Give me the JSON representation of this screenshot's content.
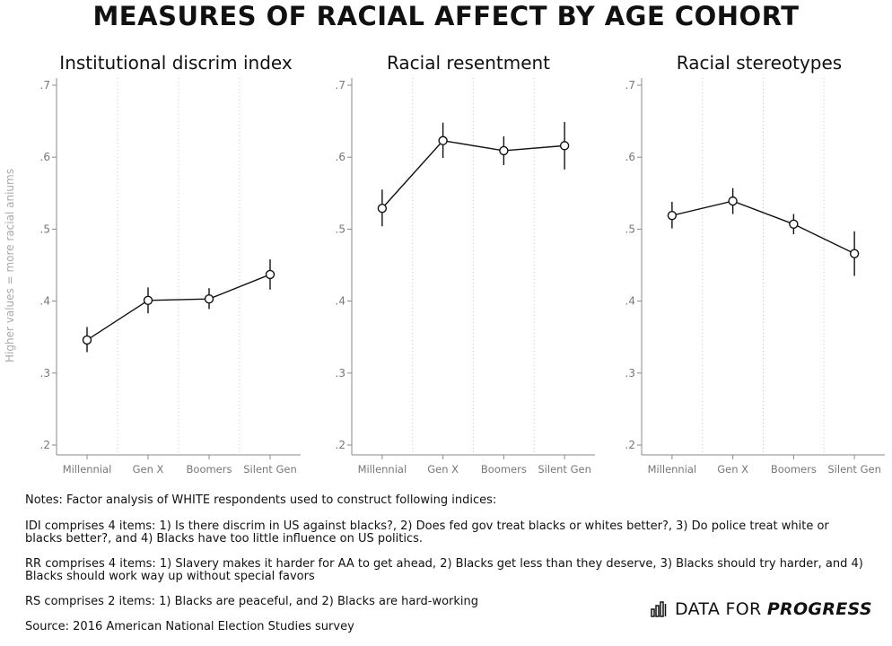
{
  "title": "MEASURES OF RACIAL AFFECT BY AGE COHORT",
  "y_axis_label": "Higher values = more racial aniums",
  "chart_data": [
    {
      "type": "line",
      "title": "Institutional discrim index",
      "categories": [
        "Millennial",
        "Gen X",
        "Boomers",
        "Silent Gen"
      ],
      "values": [
        0.346,
        0.401,
        0.403,
        0.437
      ],
      "ci_low": [
        0.329,
        0.383,
        0.389,
        0.416
      ],
      "ci_high": [
        0.364,
        0.419,
        0.418,
        0.458
      ],
      "ylim": [
        0.2,
        0.7
      ],
      "yticks": [
        ".2",
        ".3",
        ".4",
        ".5",
        ".6",
        ".7"
      ],
      "grid": "vertical dotted"
    },
    {
      "type": "line",
      "title": "Racial resentment",
      "categories": [
        "Millennial",
        "Gen X",
        "Boomers",
        "Silent Gen"
      ],
      "values": [
        0.529,
        0.623,
        0.609,
        0.616
      ],
      "ci_low": [
        0.504,
        0.599,
        0.589,
        0.583
      ],
      "ci_high": [
        0.555,
        0.648,
        0.629,
        0.649
      ],
      "ylim": [
        0.2,
        0.7
      ],
      "yticks": [
        ".2",
        ".3",
        ".4",
        ".5",
        ".6",
        ".7"
      ],
      "grid": "vertical dotted"
    },
    {
      "type": "line",
      "title": "Racial stereotypes",
      "categories": [
        "Millennial",
        "Gen X",
        "Boomers",
        "Silent Gen"
      ],
      "values": [
        0.519,
        0.539,
        0.507,
        0.466
      ],
      "ci_low": [
        0.501,
        0.521,
        0.493,
        0.435
      ],
      "ci_high": [
        0.538,
        0.557,
        0.521,
        0.497
      ],
      "ylim": [
        0.2,
        0.7
      ],
      "yticks": [
        ".2",
        ".3",
        ".4",
        ".5",
        ".6",
        ".7"
      ],
      "grid": "vertical dotted"
    }
  ],
  "notes": {
    "intro": "Notes: Factor analysis of WHITE respondents used to construct following indices:",
    "idi": "IDI comprises 4 items: 1) Is there discrim in US against blacks?, 2) Does fed gov treat blacks or whites better?, 3) Do police treat white or blacks better?, and 4) Blacks have too little influence on US politics.",
    "rr": "RR comprises 4 items: 1) Slavery makes it harder for AA to get ahead, 2) Blacks get less than they deserve, 3) Blacks should try harder, and 4) Blacks should work way up without special favors",
    "rs": "RS comprises 2 items: 1) Blacks are peaceful, and 2) Blacks are hard-working",
    "source": "Source: 2016 American National Election Studies survey"
  },
  "brand": {
    "prefix": "DATA FOR ",
    "bold": "PROGRESS",
    "icon": "bar-chart-icon"
  }
}
